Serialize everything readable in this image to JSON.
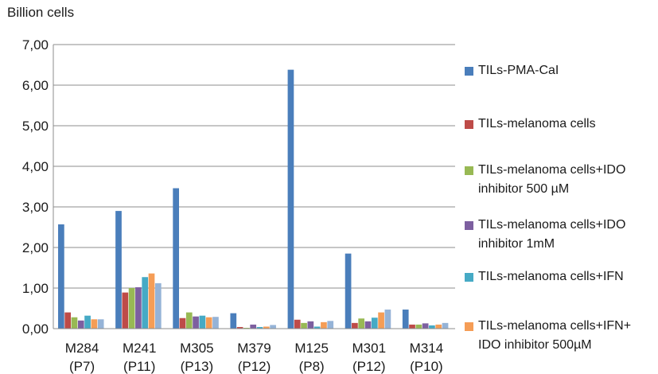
{
  "chart_data": {
    "type": "bar",
    "ylabel": "Billion cells",
    "ylim": [
      0,
      7
    ],
    "yticks": [
      "0,00",
      "1,00",
      "2,00",
      "3,00",
      "4,00",
      "5,00",
      "6,00",
      "7,00"
    ],
    "grid": true,
    "legend_position": "right",
    "categories": [
      {
        "line1": "M284",
        "line2": "(P7)"
      },
      {
        "line1": "M241",
        "line2": "(P11)"
      },
      {
        "line1": "M305",
        "line2": "(P13)"
      },
      {
        "line1": "M379",
        "line2": "(P12)"
      },
      {
        "line1": "M125",
        "line2": "(P8)"
      },
      {
        "line1": "M301",
        "line2": "(P12)"
      },
      {
        "line1": "M314",
        "line2": "(P10)"
      }
    ],
    "series": [
      {
        "name": "TILs-PMA-CaI",
        "color": "#4a7ebb",
        "values": [
          2.57,
          2.9,
          3.46,
          0.38,
          6.38,
          1.85,
          0.47
        ]
      },
      {
        "name": "TILs-melanoma cells",
        "color": "#be4b48",
        "values": [
          0.4,
          0.89,
          0.26,
          0.04,
          0.22,
          0.14,
          0.1
        ]
      },
      {
        "name": "TILs-melanoma cells+IDO\ninhibitor 500 µM",
        "color": "#98b954",
        "values": [
          0.28,
          1.0,
          0.4,
          0.02,
          0.14,
          0.25,
          0.1
        ]
      },
      {
        "name": "TILs-melanoma cells+IDO\ninhibitor 1mM",
        "color": "#7d5fa0",
        "values": [
          0.2,
          1.02,
          0.3,
          0.1,
          0.18,
          0.18,
          0.13
        ]
      },
      {
        "name": "TILs-melanoma cells+IFN",
        "color": "#46aac5",
        "values": [
          0.32,
          1.27,
          0.32,
          0.04,
          0.05,
          0.27,
          0.08
        ]
      },
      {
        "name": "TILs-melanoma cells+IFN+\nIDO inhibitor 500µM",
        "color": "#f59d56",
        "values": [
          0.23,
          1.36,
          0.28,
          0.05,
          0.16,
          0.4,
          0.1
        ]
      },
      {
        "name": "",
        "color": "#95b3d7",
        "values": [
          0.23,
          1.12,
          0.29,
          0.09,
          0.19,
          0.47,
          0.14
        ]
      }
    ]
  }
}
